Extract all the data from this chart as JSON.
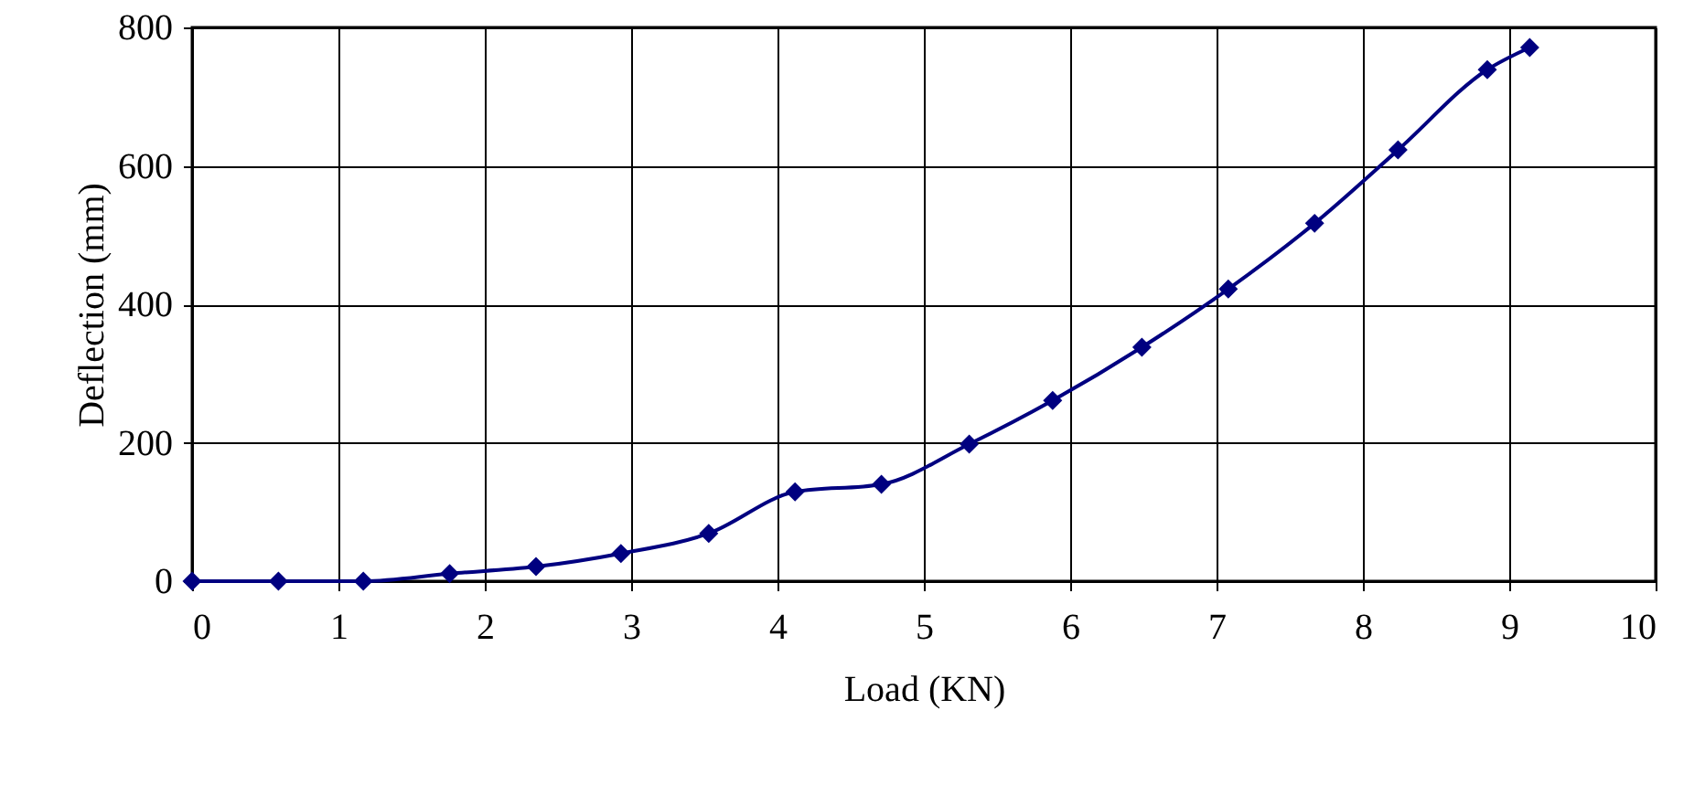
{
  "chart_data": {
    "type": "line",
    "xlabel": "Load (KN)",
    "ylabel": "Deflection (mm)",
    "x": [
      0,
      0.59,
      1.17,
      1.76,
      2.35,
      2.93,
      3.53,
      4.12,
      4.71,
      5.31,
      5.88,
      6.49,
      7.08,
      7.67,
      8.24,
      8.85,
      9.14
    ],
    "series": [
      {
        "color": "#000080",
        "values": [
          0,
          0,
          0,
          11,
          21,
          40,
          69,
          129,
          140,
          198,
          261,
          338,
          422,
          517,
          623,
          739,
          771
        ]
      }
    ],
    "xlim": [
      0,
      10
    ],
    "xticks": [
      0,
      1,
      2,
      3,
      4,
      5,
      6,
      7,
      8,
      9,
      10
    ],
    "ylim": [
      0,
      800
    ],
    "yticks": [
      0,
      200,
      400,
      600,
      800
    ],
    "grid": true,
    "marker": "diamond",
    "line_style": "solid"
  }
}
